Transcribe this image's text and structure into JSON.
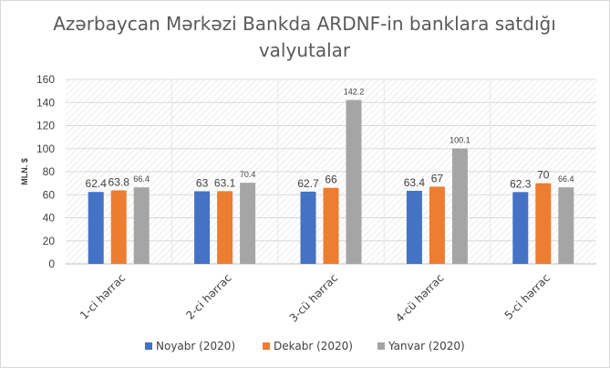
{
  "chart_data": {
    "type": "bar",
    "title_line1": "Azərbaycan Mərkəzi Bankda ARDNF-in banklara satdığı",
    "title_line2": "valyutalar",
    "ylabel": "MLN. $",
    "xlabel": "",
    "ylim": [
      0,
      160
    ],
    "yticks": [
      0,
      20,
      40,
      60,
      80,
      100,
      120,
      140,
      160
    ],
    "categories": [
      "1-ci hərrac",
      "2-ci hərrac",
      "3-cü hərrac",
      "4-cü hərrac",
      "5-ci hərrac"
    ],
    "series": [
      {
        "name": "Noyabr (2020)",
        "color": "#4472C4",
        "values": [
          62.4,
          63,
          62.7,
          63.4,
          62.3
        ],
        "labels": [
          "62.4",
          "63",
          "62.7",
          "63.4",
          "62.3"
        ]
      },
      {
        "name": "Dekabr (2020)",
        "color": "#ED7D31",
        "values": [
          63.8,
          63.1,
          66,
          67,
          70
        ],
        "labels": [
          "63.8",
          "63.1",
          "66",
          "67",
          "70"
        ]
      },
      {
        "name": "Yanvar (2020)",
        "color": "#A5A5A5",
        "values": [
          66.4,
          70.4,
          142.2,
          100.1,
          66.4
        ],
        "labels": [
          "66.4",
          "70.4",
          "142.2",
          "100.1",
          "66.4"
        ]
      }
    ],
    "grid": true,
    "legend_position": "bottom"
  }
}
